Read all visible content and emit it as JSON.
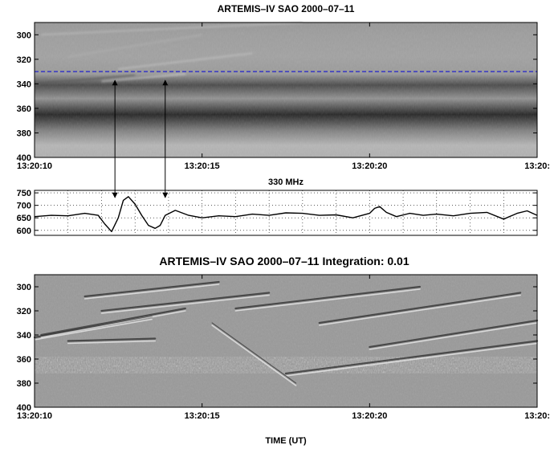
{
  "chart_data": [
    {
      "type": "heatmap",
      "title": "ARTEMIS–IV  SAO 2000–07–11",
      "xlabel": "",
      "ylabel": "",
      "x_ticks": [
        "13:20:10",
        "13:20:15",
        "13:20:20",
        "13:20:"
      ],
      "x_range": [
        "13:20:10",
        "13:20:25"
      ],
      "y_ticks": [
        300,
        320,
        340,
        360,
        380,
        400
      ],
      "ylim": [
        290,
        400
      ],
      "y_inverted": true,
      "colormap": "grayscale",
      "reference_line": {
        "y": 330,
        "style": "dashed",
        "color": "#2222cc"
      },
      "markers_at_seconds": [
        12.4,
        13.9
      ],
      "frequency_bands": [
        {
          "center": 300,
          "level": 0.15
        },
        {
          "center": 318,
          "level": 0.18
        },
        {
          "center": 332,
          "level": 0.12
        },
        {
          "center": 341,
          "level": -0.55
        },
        {
          "center": 352,
          "level": 0.05
        },
        {
          "center": 365,
          "level": -0.85
        },
        {
          "center": 378,
          "level": -0.1
        },
        {
          "center": 390,
          "level": 0.35
        }
      ]
    },
    {
      "type": "line",
      "title": "330 MHz",
      "x_ticks": [
        "13:20:10",
        "13:20:15",
        "13:20:20",
        "13:20:"
      ],
      "y_ticks": [
        600,
        650,
        700,
        750
      ],
      "ylim": [
        580,
        760
      ],
      "series": [
        {
          "x": [
            10.0,
            10.5,
            11.0,
            11.5,
            11.9,
            12.1,
            12.3,
            12.5,
            12.65,
            12.8,
            13.0,
            13.2,
            13.4,
            13.6,
            13.75,
            13.9,
            14.2,
            14.6,
            15.0,
            15.5,
            16.0,
            16.5,
            17.0,
            17.5,
            18.0,
            18.5,
            19.0,
            19.5,
            20.0,
            20.15,
            20.3,
            20.5,
            20.8,
            21.2,
            21.6,
            22.0,
            22.5,
            23.0,
            23.5,
            24.0,
            24.4,
            24.7,
            25.0
          ],
          "values": [
            655,
            660,
            658,
            668,
            660,
            625,
            595,
            650,
            720,
            735,
            705,
            660,
            620,
            608,
            620,
            660,
            680,
            660,
            650,
            658,
            655,
            665,
            660,
            670,
            668,
            660,
            662,
            650,
            668,
            688,
            695,
            672,
            655,
            668,
            660,
            665,
            658,
            668,
            672,
            645,
            668,
            678,
            660
          ]
        }
      ]
    },
    {
      "type": "heatmap",
      "title": "ARTEMIS–IV  SAO 2000–07–11   Integration: 0.01",
      "xlabel": "TIME (UT)",
      "ylabel": "",
      "x_ticks": [
        "13:20:10",
        "13:20:15",
        "13:20:20",
        "13:20:"
      ],
      "x_range": [
        "13:20:10",
        "13:20:25"
      ],
      "y_ticks": [
        300,
        320,
        340,
        360,
        380,
        400
      ],
      "ylim": [
        290,
        400
      ],
      "y_inverted": true,
      "colormap": "grayscale (high-pass filtered)",
      "features": [
        {
          "kind": "drifting stripe",
          "t_start": 10.0,
          "f_start": 342,
          "t_end": 13.5,
          "f_end": 325
        },
        {
          "kind": "drifting stripe",
          "t_start": 10.2,
          "f_start": 340,
          "t_end": 14.5,
          "f_end": 318
        },
        {
          "kind": "drifting stripe",
          "t_start": 11.0,
          "f_start": 345,
          "t_end": 13.6,
          "f_end": 343
        },
        {
          "kind": "drifting stripe",
          "t_start": 11.5,
          "f_start": 308,
          "t_end": 15.5,
          "f_end": 296
        },
        {
          "kind": "drifting stripe",
          "t_start": 12.0,
          "f_start": 320,
          "t_end": 17.0,
          "f_end": 305
        },
        {
          "kind": "drifting stripe",
          "t_start": 16.0,
          "f_start": 318,
          "t_end": 21.5,
          "f_end": 300
        },
        {
          "kind": "drifting stripe",
          "t_start": 18.5,
          "f_start": 330,
          "t_end": 24.5,
          "f_end": 305
        },
        {
          "kind": "drifting stripe",
          "t_start": 20.0,
          "f_start": 350,
          "t_end": 25.0,
          "f_end": 328
        },
        {
          "kind": "drifting stripe",
          "t_start": 17.5,
          "f_start": 372,
          "t_end": 25.0,
          "f_end": 345
        },
        {
          "kind": "reverse drift",
          "t_start": 15.3,
          "f_start": 330,
          "t_end": 17.8,
          "f_end": 380
        }
      ]
    }
  ]
}
